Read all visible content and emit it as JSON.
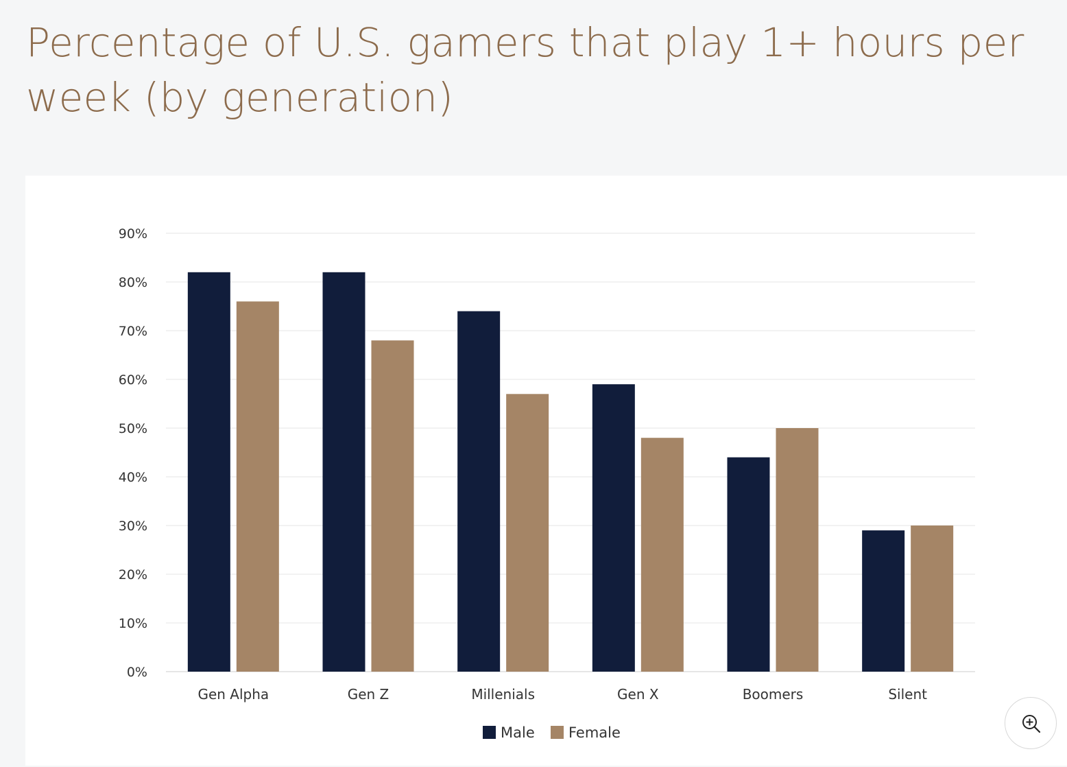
{
  "title": "Percentage of U.S. gamers that play 1+ hours per week (by generation)",
  "colors": {
    "male": "#111d3b",
    "female": "#a58566",
    "title": "#8c6b4c",
    "grid": "#e6e6e6"
  },
  "zoom": {
    "icon": "zoom-in-icon"
  },
  "chart_data": {
    "type": "bar",
    "title": "Percentage of U.S. gamers that play 1+ hours per week (by generation)",
    "xlabel": "",
    "ylabel": "",
    "categories": [
      "Gen Alpha",
      "Gen Z",
      "Millenials",
      "Gen X",
      "Boomers",
      "Silent"
    ],
    "series": [
      {
        "name": "Male",
        "values": [
          82,
          82,
          74,
          59,
          44,
          29
        ]
      },
      {
        "name": "Female",
        "values": [
          76,
          68,
          57,
          48,
          50,
          30
        ]
      }
    ],
    "ylim": [
      0,
      90
    ],
    "yticks": [
      0,
      10,
      20,
      30,
      40,
      50,
      60,
      70,
      80,
      90
    ],
    "ytick_labels": [
      "0%",
      "10%",
      "20%",
      "30%",
      "40%",
      "50%",
      "60%",
      "70%",
      "80%",
      "90%"
    ],
    "grid": true,
    "legend": {
      "entries": [
        "Male",
        "Female"
      ],
      "position": "bottom-center"
    }
  }
}
